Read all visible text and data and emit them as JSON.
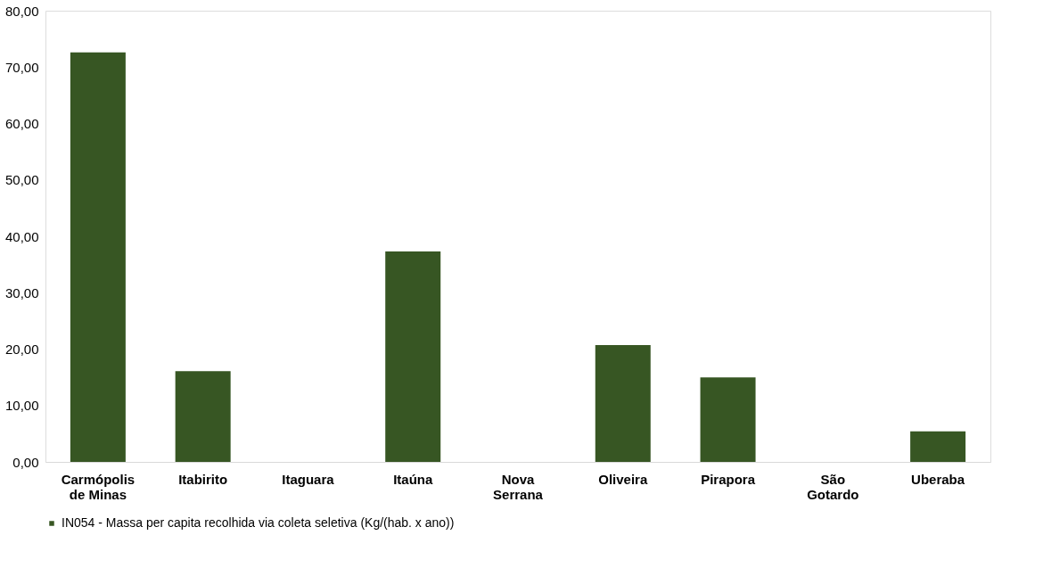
{
  "chart_data": {
    "type": "bar",
    "categories": [
      "Carmópolis de Minas",
      "Itabirito",
      "Itaguara",
      "Itaúna",
      "Nova Serrana",
      "Oliveira",
      "Pirapora",
      "São Gotardo",
      "Uberaba"
    ],
    "series": [
      {
        "name": "IN054 - Massa per capita recolhida via coleta seletiva (Kg/(hab. x ano))",
        "color": "#375623",
        "values": [
          72.6,
          16.1,
          null,
          37.3,
          null,
          20.7,
          15.0,
          null,
          5.4
        ]
      }
    ],
    "ylim": [
      0,
      80
    ],
    "yticks": [
      {
        "value": 0,
        "label": "0,00"
      },
      {
        "value": 10,
        "label": "10,00"
      },
      {
        "value": 20,
        "label": "20,00"
      },
      {
        "value": 30,
        "label": "30,00"
      },
      {
        "value": 40,
        "label": "40,00"
      },
      {
        "value": 50,
        "label": "50,00"
      },
      {
        "value": 60,
        "label": "60,00"
      },
      {
        "value": 70,
        "label": "70,00"
      },
      {
        "value": 80,
        "label": "80,00"
      }
    ],
    "grid": false,
    "legend": "bottom"
  }
}
